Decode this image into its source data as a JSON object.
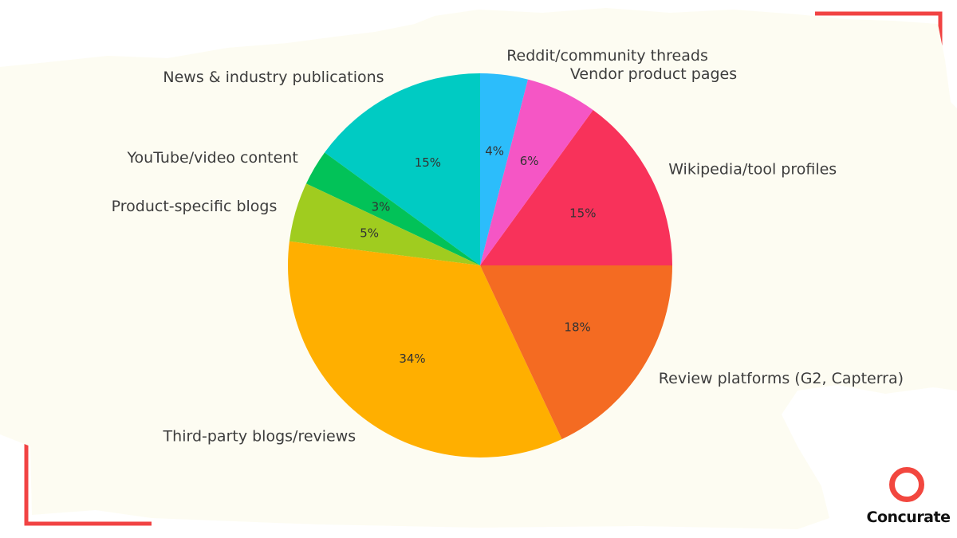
{
  "brand": {
    "name": "Concurate",
    "accent_color": "#f2473f"
  },
  "chart_data": {
    "type": "pie",
    "title": "",
    "start_angle_deg": 90,
    "direction": "counterclockwise",
    "slices": [
      {
        "label": "News & industry publications",
        "value": 15,
        "pct_label": "15%",
        "color": "#00cbc3"
      },
      {
        "label": "YouTube/video content",
        "value": 3,
        "pct_label": "3%",
        "color": "#02c258"
      },
      {
        "label": "Product-specific blogs",
        "value": 5,
        "pct_label": "5%",
        "color": "#a0cc1f"
      },
      {
        "label": "Third-party blogs/reviews",
        "value": 34,
        "pct_label": "34%",
        "color": "#ffaf00"
      },
      {
        "label": "Review platforms (G2, Capterra)",
        "value": 18,
        "pct_label": "18%",
        "color": "#f46b22"
      },
      {
        "label": "Wikipedia/tool profiles",
        "value": 15,
        "pct_label": "15%",
        "color": "#f8325a"
      },
      {
        "label": "Vendor product pages",
        "value": 6,
        "pct_label": "6%",
        "color": "#f556c5"
      },
      {
        "label": "Reddit/community threads",
        "value": 4,
        "pct_label": "4%",
        "color": "#2cbdfb"
      }
    ]
  }
}
